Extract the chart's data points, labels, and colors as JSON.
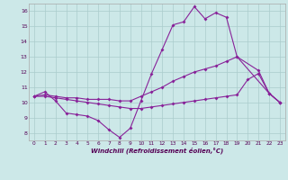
{
  "xlabel": "Windchill (Refroidissement éolien,°C)",
  "bg_color": "#cce8e8",
  "grid_color": "#aacccc",
  "line_color": "#882299",
  "xlim": [
    -0.5,
    23.5
  ],
  "ylim": [
    7.5,
    16.5
  ],
  "xticks": [
    0,
    1,
    2,
    3,
    4,
    5,
    6,
    7,
    8,
    9,
    10,
    11,
    12,
    13,
    14,
    15,
    16,
    17,
    18,
    19,
    20,
    21,
    22,
    23
  ],
  "yticks": [
    8,
    9,
    10,
    11,
    12,
    13,
    14,
    15,
    16
  ],
  "series": {
    "line1": {
      "x": [
        0,
        1,
        2,
        3,
        4,
        5,
        6,
        7,
        8,
        9,
        10,
        11,
        12,
        13,
        14,
        15,
        16,
        17,
        18,
        19,
        20,
        21,
        22,
        23
      ],
      "y": [
        10.4,
        10.7,
        10.1,
        9.3,
        9.2,
        9.1,
        8.8,
        8.2,
        7.7,
        8.3,
        10.1,
        11.9,
        13.5,
        15.1,
        15.3,
        16.3,
        15.5,
        15.9,
        15.6,
        13.0,
        null,
        12.1,
        10.6,
        10.0
      ]
    },
    "line2": {
      "x": [
        0,
        1,
        2,
        3,
        4,
        5,
        6,
        7,
        8,
        9,
        10,
        11,
        12,
        13,
        14,
        15,
        16,
        17,
        18,
        19,
        20,
        21,
        22,
        23
      ],
      "y": [
        10.4,
        10.5,
        10.4,
        10.3,
        10.3,
        10.2,
        10.2,
        10.2,
        10.1,
        10.1,
        10.4,
        10.7,
        11.0,
        11.4,
        11.7,
        12.0,
        12.2,
        12.4,
        12.7,
        13.0,
        null,
        null,
        10.6,
        10.0
      ]
    },
    "line3": {
      "x": [
        0,
        1,
        2,
        3,
        4,
        5,
        6,
        7,
        8,
        9,
        10,
        11,
        12,
        13,
        14,
        15,
        16,
        17,
        18,
        19,
        20,
        21,
        22,
        23
      ],
      "y": [
        10.4,
        10.4,
        10.3,
        10.2,
        10.1,
        10.0,
        9.9,
        9.8,
        9.7,
        9.6,
        9.6,
        9.7,
        9.8,
        9.9,
        10.0,
        10.1,
        10.2,
        10.3,
        10.4,
        10.5,
        11.5,
        11.9,
        10.6,
        10.0
      ]
    }
  }
}
